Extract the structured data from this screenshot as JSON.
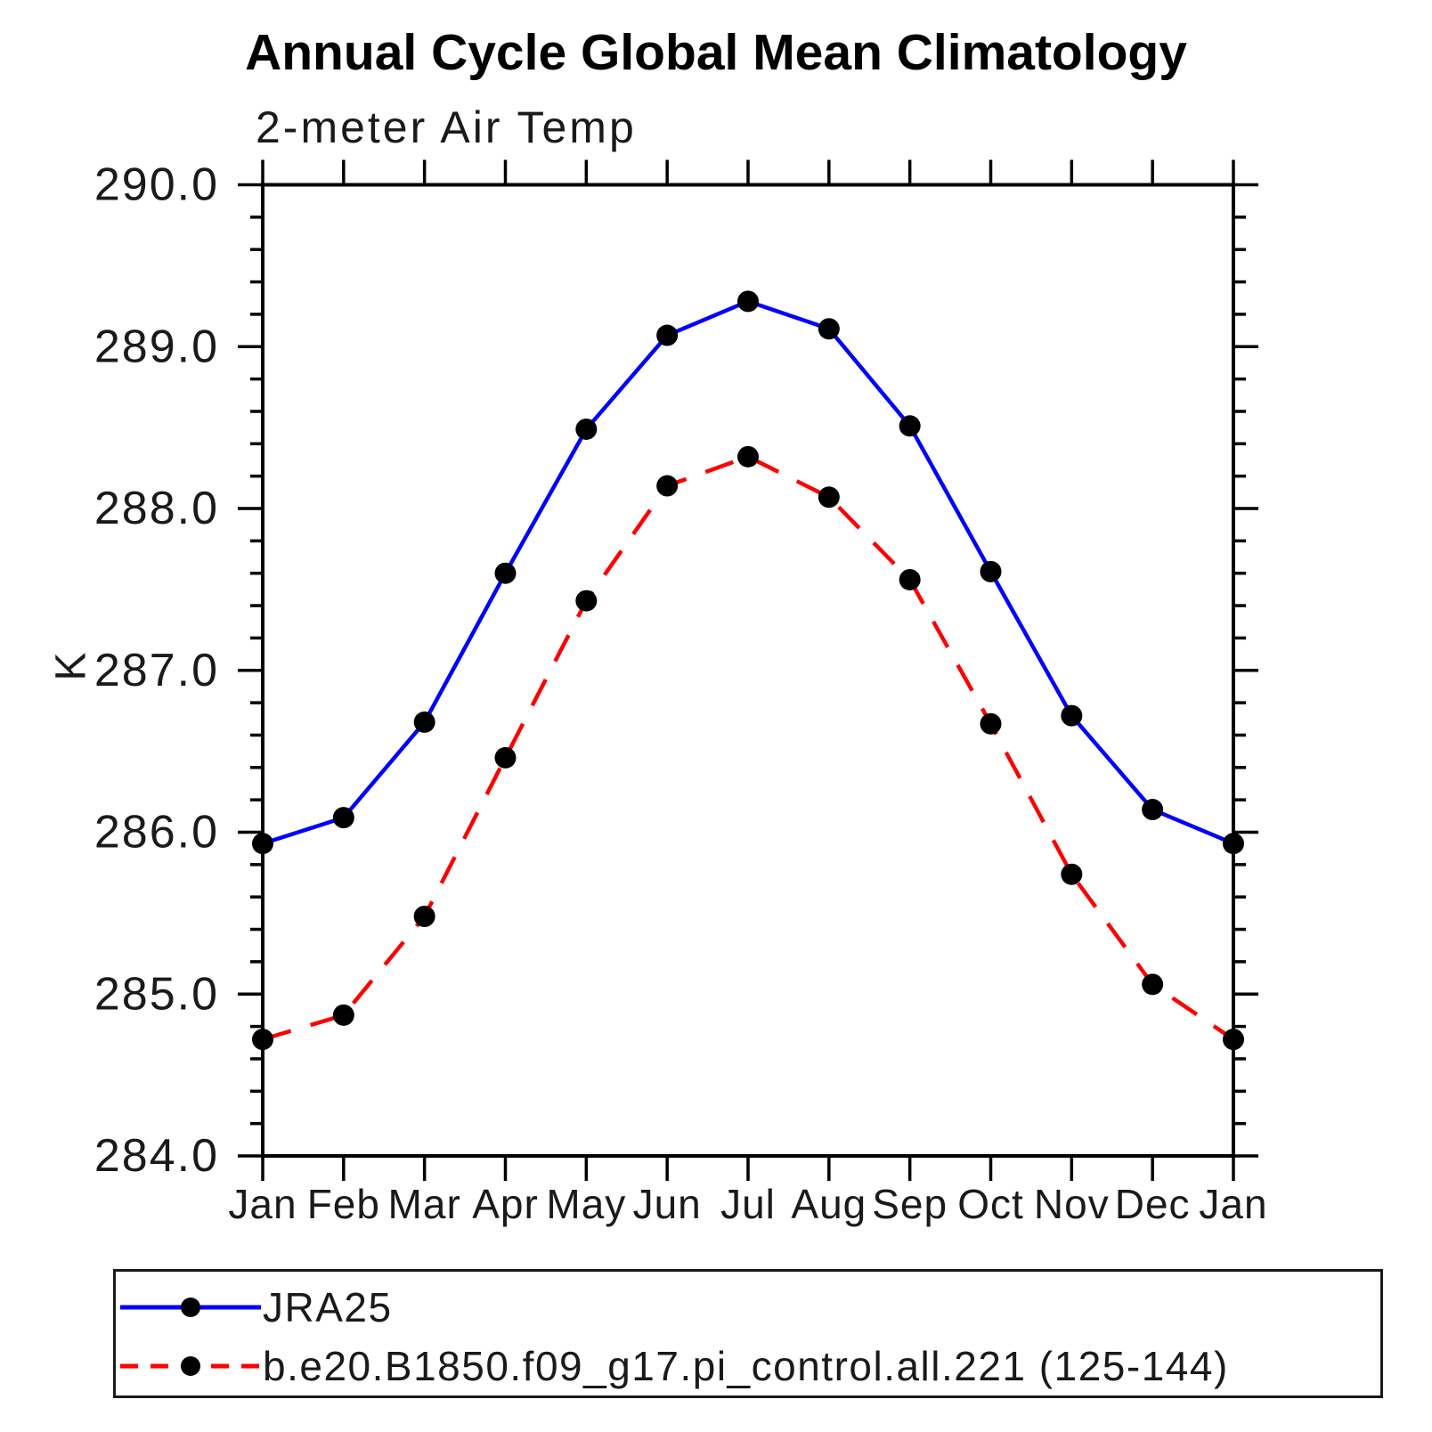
{
  "title": "Annual Cycle Global Mean Climatology",
  "subtitle": "2-meter Air Temp",
  "y_axis_title": "K",
  "chart_data": {
    "type": "line",
    "categories": [
      "Jan",
      "Feb",
      "Mar",
      "Apr",
      "May",
      "Jun",
      "Jul",
      "Aug",
      "Sep",
      "Oct",
      "Nov",
      "Dec",
      "Jan"
    ],
    "series": [
      {
        "name": "JRA25",
        "color": "#0000ff",
        "style": "solid",
        "marker": "circle",
        "marker_color": "#000000",
        "values": [
          285.93,
          286.09,
          286.68,
          287.6,
          288.49,
          289.07,
          289.28,
          289.11,
          288.51,
          287.61,
          286.72,
          286.14,
          285.93
        ]
      },
      {
        "name": "b.e20.B1850.f09_g17.pi_control.all.221 (125-144)",
        "color": "#ff0000",
        "style": "dashed",
        "marker": "circle",
        "marker_color": "#000000",
        "values": [
          284.72,
          284.87,
          285.48,
          286.46,
          287.43,
          288.14,
          288.32,
          288.07,
          287.56,
          286.67,
          285.74,
          285.06,
          284.72
        ]
      }
    ],
    "xlabel": "",
    "ylabel": "K",
    "ylim": [
      284.0,
      290.0
    ],
    "ytick_step": 1.0,
    "ytick_minor_step": 0.2,
    "ytick_labels": [
      "284.0",
      "285.0",
      "286.0",
      "287.0",
      "288.0",
      "289.0",
      "290.0"
    ],
    "grid": false,
    "legend_position": "bottom-left",
    "axis_color": "#000000",
    "text_color": "#1a1a1a"
  },
  "legend": {
    "items": [
      {
        "label": "JRA25"
      },
      {
        "label": "b.e20.B1850.f09_g17.pi_control.all.221 (125-144)"
      }
    ]
  }
}
